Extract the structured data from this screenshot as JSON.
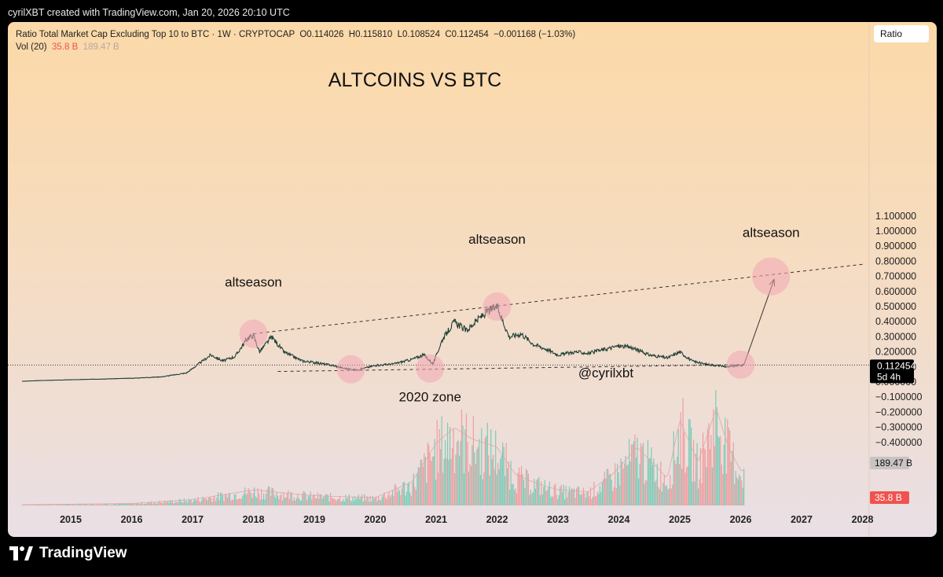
{
  "header": {
    "credit": "cyrilXBT created with TradingView.com, Jan 20, 2026 20:10 UTC"
  },
  "legend": {
    "symbol": "Ratio Total Market Cap Excluding Top 10 to BTC · 1W · CRYPTOCAP",
    "open": "O0.114026",
    "high": "H0.115810",
    "low": "L0.108524",
    "close": "C0.112454",
    "change": "−0.001168 (−1.03%)",
    "vol_label": "Vol (20)",
    "vol_value": "35.8 B",
    "vol_ma": "189.47 B"
  },
  "ratio_button": "Ratio",
  "price_tag": {
    "value": "0.112454",
    "countdown": "5d 4h"
  },
  "vol_tags": {
    "ma": "189.47 B",
    "vol": "35.8 B"
  },
  "brand": "TradingView",
  "colors": {
    "up": "#26a69a",
    "down": "#ef5350",
    "red_tag": "#ef5350",
    "circle": "#f3a6b4"
  },
  "chart_data": {
    "type": "line",
    "title": "ALTCOINS VS BTC",
    "xlabel": "",
    "ylabel": "",
    "x_ticks": [
      "2015",
      "2016",
      "2017",
      "2018",
      "2019",
      "2020",
      "2021",
      "2022",
      "2023",
      "2024",
      "2025",
      "2026",
      "2027",
      "2028"
    ],
    "y_ticks": [
      "1.100000",
      "1.000000",
      "0.900000",
      "0.800000",
      "0.700000",
      "0.600000",
      "0.500000",
      "0.400000",
      "0.300000",
      "0.200000",
      "0.100000",
      "0.000000",
      "−0.100000",
      "−0.200000",
      "−0.300000",
      "−0.400000"
    ],
    "ylim": [
      -0.4,
      1.1
    ],
    "grid": false,
    "series": [
      {
        "x": [
          2014.2,
          2014.5,
          2015.0,
          2015.5,
          2016.0,
          2016.5,
          2016.9,
          2017.1,
          2017.3,
          2017.5,
          2017.7,
          2017.9,
          2018.0,
          2018.1,
          2018.3,
          2018.5,
          2018.8,
          2019.0,
          2019.3,
          2019.5,
          2019.7,
          2020.0,
          2020.3,
          2020.6,
          2020.8,
          2020.95,
          2021.1,
          2021.3,
          2021.5,
          2021.7,
          2021.85,
          2022.0,
          2022.1,
          2022.2,
          2022.4,
          2022.6,
          2022.8,
          2023.0,
          2023.3,
          2023.5,
          2023.8,
          2024.0,
          2024.2,
          2024.5,
          2024.8,
          2025.0,
          2025.2,
          2025.4,
          2025.6,
          2025.8,
          2025.95,
          2026.05
        ],
        "y": [
          0.005,
          0.01,
          0.015,
          0.02,
          0.025,
          0.035,
          0.06,
          0.12,
          0.18,
          0.14,
          0.17,
          0.29,
          0.31,
          0.2,
          0.3,
          0.2,
          0.14,
          0.13,
          0.11,
          0.09,
          0.08,
          0.11,
          0.12,
          0.15,
          0.18,
          0.12,
          0.28,
          0.4,
          0.34,
          0.42,
          0.47,
          0.5,
          0.4,
          0.3,
          0.32,
          0.25,
          0.22,
          0.18,
          0.2,
          0.19,
          0.22,
          0.24,
          0.23,
          0.18,
          0.16,
          0.2,
          0.14,
          0.12,
          0.11,
          0.1,
          0.11,
          0.112
        ]
      }
    ],
    "volume": {
      "x": [
        2014.2,
        2016.0,
        2017.0,
        2018.0,
        2019.0,
        2020.0,
        2020.6,
        2021.0,
        2021.3,
        2021.6,
        2022.0,
        2022.3,
        2022.6,
        2023.0,
        2023.5,
        2023.9,
        2024.3,
        2024.8,
        2025.0,
        2025.3,
        2025.6,
        2025.8,
        2026.0
      ],
      "y": [
        2,
        5,
        15,
        40,
        25,
        20,
        60,
        160,
        200,
        170,
        150,
        80,
        60,
        40,
        35,
        80,
        150,
        70,
        220,
        110,
        250,
        150,
        90
      ]
    },
    "annotations": [
      {
        "text": "altseason",
        "x": 2018.0,
        "y": 0.32
      },
      {
        "text": "altseason",
        "x": 2022.0,
        "y": 0.5
      },
      {
        "text": "altseason",
        "x": 2026.5,
        "y": 0.7
      },
      {
        "text": "2020 zone",
        "x": 2020.9,
        "y": 0.08
      },
      {
        "text": "@cyrilxbt",
        "x": 2023.4,
        "y": -0.1
      }
    ],
    "trendlines": [
      {
        "from": [
          2018.0,
          0.32
        ],
        "to": [
          2028.0,
          0.78
        ],
        "style": "dashed"
      },
      {
        "from": [
          2018.4,
          0.07
        ],
        "to": [
          2026.0,
          0.115
        ],
        "style": "dashed"
      },
      {
        "from": [
          2026.05,
          0.11
        ],
        "to": [
          2026.55,
          0.68
        ],
        "style": "arrow"
      }
    ],
    "circles": [
      {
        "x": 2018.0,
        "y": 0.32
      },
      {
        "x": 2019.6,
        "y": 0.085
      },
      {
        "x": 2020.9,
        "y": 0.09
      },
      {
        "x": 2022.0,
        "y": 0.5
      },
      {
        "x": 2026.0,
        "y": 0.115
      },
      {
        "x": 2026.5,
        "y": 0.7
      }
    ]
  }
}
